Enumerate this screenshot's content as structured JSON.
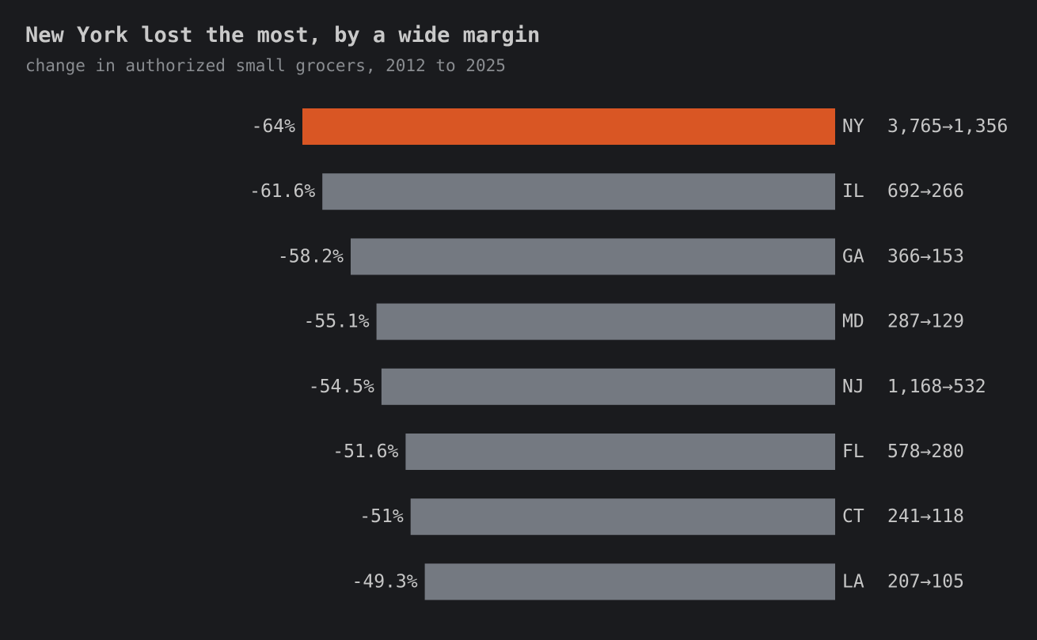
{
  "header": {
    "title": "New York lost the most, by a wide margin",
    "subtitle": "change in authorized small grocers, 2012 to 2025"
  },
  "colors": {
    "background": "#1a1b1e",
    "highlight_bar": "#d95624",
    "default_bar": "#747981",
    "label_text": "#c6c6c6"
  },
  "chart_data": {
    "type": "bar",
    "orientation": "horizontal",
    "title": "New York lost the most, by a wide margin",
    "subtitle": "change in authorized small grocers, 2012 to 2025",
    "xlim": [
      -64,
      0
    ],
    "highlight": "NY",
    "categories": [
      "NY",
      "IL",
      "GA",
      "MD",
      "NJ",
      "FL",
      "CT",
      "LA"
    ],
    "values": [
      -64,
      -61.6,
      -58.2,
      -55.1,
      -54.5,
      -51.6,
      -51,
      -49.3
    ],
    "value_labels": [
      "-64%",
      "-61.6%",
      "-58.2%",
      "-55.1%",
      "-54.5%",
      "-51.6%",
      "-51%",
      "-49.3%"
    ],
    "counts_2012": [
      3765,
      692,
      366,
      287,
      1168,
      578,
      241,
      207
    ],
    "counts_2025": [
      1356,
      266,
      153,
      129,
      532,
      280,
      118,
      105
    ],
    "count_labels": [
      "3,765→1,356",
      "692→266",
      "366→153",
      "287→129",
      "1,168→532",
      "578→280",
      "241→118",
      "207→105"
    ]
  }
}
